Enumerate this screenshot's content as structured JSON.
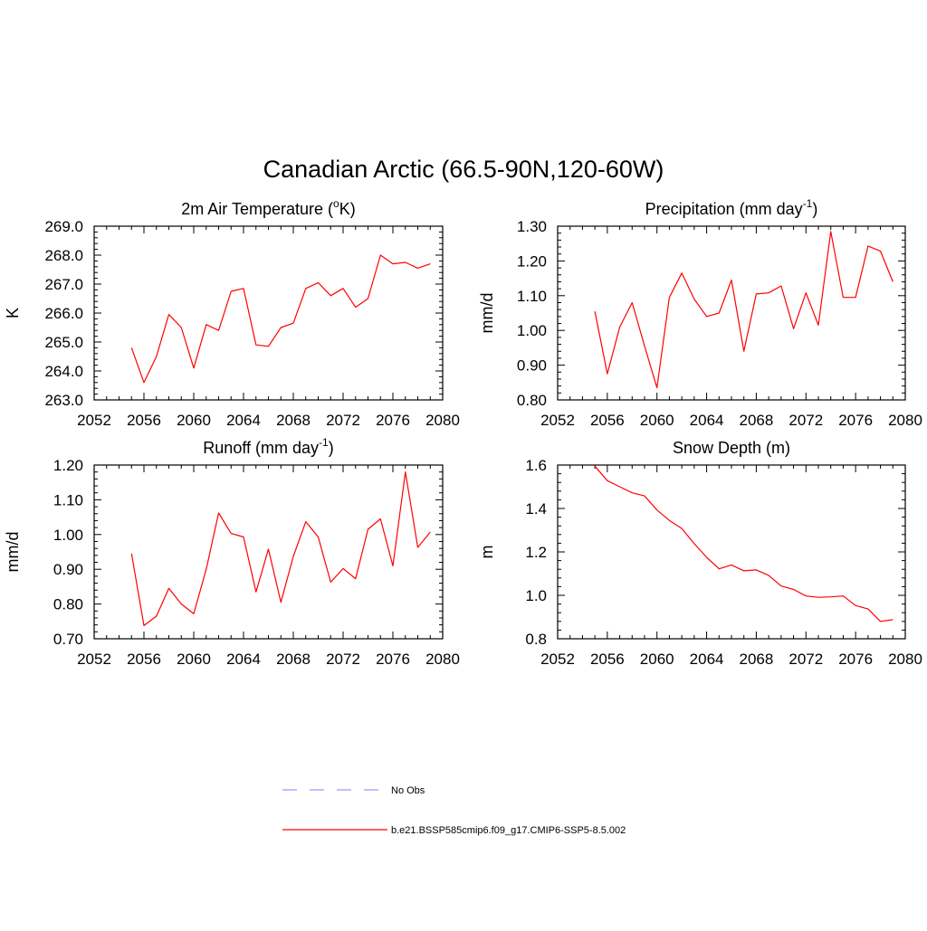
{
  "page": {
    "title": "Canadian Arctic (66.5-90N,120-60W)"
  },
  "legend": {
    "items": [
      {
        "label": "No Obs",
        "color": "#9999ff",
        "dash": true
      },
      {
        "label": "b.e21.BSSP585cmip6.f09_g17.CMIP6-SSP5-8.5.002",
        "color": "#ff0000",
        "dash": false
      }
    ]
  },
  "chart_data": [
    {
      "type": "line",
      "title": "2m Air Temperature (oK)",
      "title_parts": [
        "2m Air Temperature (",
        "o",
        "K)"
      ],
      "ylabel": "K",
      "xlim": [
        2052,
        2080
      ],
      "xticks": [
        "2052",
        "2056",
        "2060",
        "2064",
        "2068",
        "2072",
        "2076",
        "2080"
      ],
      "ylim": [
        263.0,
        269.0
      ],
      "yticks": [
        "263.0",
        "264.0",
        "265.0",
        "266.0",
        "267.0",
        "268.0",
        "269.0"
      ],
      "series": [
        {
          "color": "#ff0000",
          "x": [
            2055,
            2056,
            2057,
            2058,
            2059,
            2060,
            2061,
            2062,
            2063,
            2064,
            2065,
            2066,
            2067,
            2068,
            2069,
            2070,
            2071,
            2072,
            2073,
            2074,
            2075,
            2076,
            2077,
            2078,
            2079
          ],
          "y": [
            264.8,
            263.6,
            264.5,
            265.95,
            265.5,
            264.1,
            265.6,
            265.4,
            266.75,
            266.85,
            264.9,
            264.85,
            265.5,
            265.65,
            266.85,
            267.05,
            266.6,
            266.85,
            266.2,
            266.5,
            268.0,
            267.7,
            267.75,
            267.55,
            267.7
          ]
        }
      ]
    },
    {
      "type": "line",
      "title": "Precipitation (mm day-1)",
      "title_parts": [
        "Precipitation (mm day",
        "-1",
        ")"
      ],
      "ylabel": "mm/d",
      "xlim": [
        2052,
        2080
      ],
      "xticks": [
        "2052",
        "2056",
        "2060",
        "2064",
        "2068",
        "2072",
        "2076",
        "2080"
      ],
      "ylim": [
        0.8,
        1.3
      ],
      "yticks": [
        "0.80",
        "0.90",
        "1.00",
        "1.10",
        "1.20",
        "1.30"
      ],
      "series": [
        {
          "color": "#ff0000",
          "x": [
            2055,
            2056,
            2057,
            2058,
            2059,
            2060,
            2061,
            2062,
            2063,
            2064,
            2065,
            2066,
            2067,
            2068,
            2069,
            2070,
            2071,
            2072,
            2073,
            2074,
            2075,
            2076,
            2077,
            2078,
            2079
          ],
          "y": [
            1.055,
            0.875,
            1.01,
            1.08,
            0.955,
            0.835,
            1.095,
            1.165,
            1.09,
            1.04,
            1.05,
            1.145,
            0.94,
            1.105,
            1.108,
            1.128,
            1.005,
            1.108,
            1.015,
            1.285,
            1.095,
            1.095,
            1.243,
            1.228,
            1.14
          ]
        }
      ]
    },
    {
      "type": "line",
      "title": "Runoff (mm day-1)",
      "title_parts": [
        "Runoff (mm day",
        "-1",
        ")"
      ],
      "ylabel": "mm/d",
      "xlim": [
        2052,
        2080
      ],
      "xticks": [
        "2052",
        "2056",
        "2060",
        "2064",
        "2068",
        "2072",
        "2076",
        "2080"
      ],
      "ylim": [
        0.7,
        1.2
      ],
      "yticks": [
        "0.70",
        "0.80",
        "0.90",
        "1.00",
        "1.10",
        "1.20"
      ],
      "series": [
        {
          "color": "#ff0000",
          "x": [
            2055,
            2056,
            2057,
            2058,
            2059,
            2060,
            2061,
            2062,
            2063,
            2064,
            2065,
            2066,
            2067,
            2068,
            2069,
            2070,
            2071,
            2072,
            2073,
            2074,
            2075,
            2076,
            2077,
            2078,
            2079
          ],
          "y": [
            0.945,
            0.738,
            0.765,
            0.845,
            0.8,
            0.772,
            0.9,
            1.062,
            1.003,
            0.993,
            0.835,
            0.958,
            0.805,
            0.937,
            1.037,
            0.993,
            0.863,
            0.902,
            0.873,
            1.015,
            1.045,
            0.91,
            1.18,
            0.963,
            1.007
          ]
        }
      ]
    },
    {
      "type": "line",
      "title": "Snow Depth (m)",
      "title_parts": [
        "Snow Depth (m)",
        "",
        ""
      ],
      "ylabel": "m",
      "xlim": [
        2052,
        2080
      ],
      "xticks": [
        "2052",
        "2056",
        "2060",
        "2064",
        "2068",
        "2072",
        "2076",
        "2080"
      ],
      "ylim": [
        0.8,
        1.6
      ],
      "yticks": [
        "0.8",
        "1.0",
        "1.2",
        "1.4",
        "1.6"
      ],
      "series": [
        {
          "color": "#ff0000",
          "x": [
            2055,
            2056,
            2057,
            2058,
            2059,
            2060,
            2061,
            2062,
            2063,
            2064,
            2065,
            2066,
            2067,
            2068,
            2069,
            2070,
            2071,
            2072,
            2073,
            2074,
            2075,
            2076,
            2077,
            2078,
            2079
          ],
          "y": [
            1.595,
            1.528,
            1.5,
            1.472,
            1.458,
            1.393,
            1.345,
            1.308,
            1.238,
            1.175,
            1.122,
            1.14,
            1.113,
            1.117,
            1.092,
            1.043,
            1.027,
            0.997,
            0.991,
            0.993,
            0.997,
            0.953,
            0.937,
            0.88,
            0.888
          ]
        }
      ]
    }
  ]
}
